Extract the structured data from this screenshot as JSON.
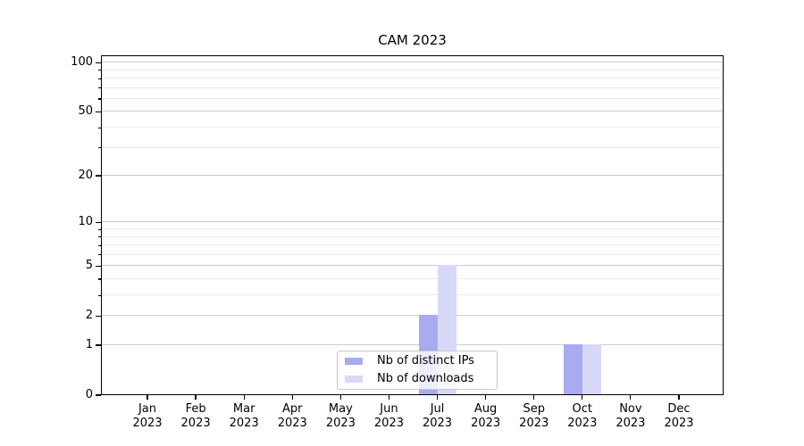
{
  "title": "CAM 2023",
  "chart_data": {
    "type": "bar",
    "title": "CAM 2023",
    "categories": [
      "Jan",
      "Feb",
      "Mar",
      "Apr",
      "May",
      "Jun",
      "Jul",
      "Aug",
      "Sep",
      "Oct",
      "Nov",
      "Dec"
    ],
    "year": "2023",
    "series": [
      {
        "name": "Nb of distinct IPs",
        "color": "#aaaaf0",
        "values": [
          0,
          0,
          0,
          0,
          0,
          0,
          2,
          0,
          0,
          1,
          0,
          0
        ]
      },
      {
        "name": "Nb of downloads",
        "color": "#d8d8f8",
        "values": [
          0,
          0,
          0,
          0,
          0,
          0,
          5,
          0,
          0,
          1,
          0,
          0
        ]
      }
    ],
    "xlabel": "",
    "ylabel": "",
    "yscale": "log1p",
    "ylim": [
      0,
      110
    ],
    "y_ticks": [
      0,
      1,
      2,
      5,
      10,
      20,
      50,
      100
    ],
    "y_minor_ticks": [
      3,
      4,
      6,
      7,
      8,
      9,
      30,
      40,
      60,
      70,
      80,
      90
    ],
    "grid": true,
    "legend_position": "lower center",
    "axis_color": "#000000",
    "grid_major_color": "#cccccc",
    "grid_minor_color": "#ececec"
  }
}
